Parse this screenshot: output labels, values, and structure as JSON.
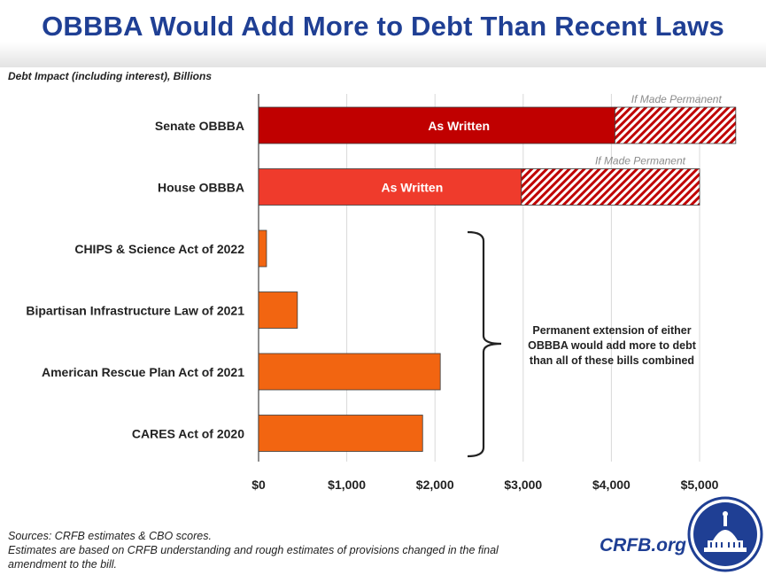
{
  "header": {
    "title": "OBBBA Would Add More to Debt Than Recent Laws"
  },
  "subtitle": "Debt Impact (including interest), Billions",
  "chart_data": {
    "type": "bar",
    "orientation": "horizontal",
    "title": "OBBBA Would Add More to Debt Than Recent Laws",
    "xlabel": "Debt Impact (including interest), Billions",
    "xlim": [
      0,
      5400
    ],
    "x_ticks": [
      0,
      1000,
      2000,
      3000,
      4000,
      5000
    ],
    "x_tick_labels": [
      "$0",
      "$1,000",
      "$2,000",
      "$3,000",
      "$4,000",
      "$5,000"
    ],
    "grid": "vertical",
    "categories": [
      "Senate OBBBA",
      "House OBBBA",
      "CHIPS & Science Act of 2022",
      "Bipartisan Infrastructure Law of 2021",
      "American Rescue Plan Act of 2021",
      "CARES Act of 2020"
    ],
    "series": [
      {
        "name": "As Written",
        "values": [
          4040,
          2980,
          90,
          440,
          2060,
          1860
        ],
        "colors": [
          "#c00000",
          "#ef3b2c",
          "#f26511",
          "#f26511",
          "#f26511",
          "#f26511"
        ]
      },
      {
        "name": "If Made Permanent",
        "values": [
          1370,
          2020,
          0,
          0,
          0,
          0
        ],
        "pattern": "hatched",
        "color": "#c00000"
      }
    ],
    "bar_labels": [
      "As Written",
      "As Written",
      "",
      "",
      "",
      ""
    ],
    "permanent_labels": [
      "If Made Permanent",
      "If Made Permanent",
      "",
      "",
      "",
      ""
    ],
    "annotation": "Permanent extension of either OBBBA would add more to debt than all of these bills combined"
  },
  "annotation_lines": [
    "Permanent extension of either",
    "OBBBA would add more to debt",
    "than all of these bills combined"
  ],
  "footer": {
    "sources": "Sources: CRFB estimates & CBO scores.",
    "note_line1": "Estimates are based on CRFB understanding and rough estimates of provisions changed in the final",
    "note_line2": "amendment to the bill."
  },
  "brand": "CRFB.org",
  "colors": {
    "title": "#1f3f94",
    "senate": "#c00000",
    "house": "#ef3b2c",
    "others": "#f26511",
    "grid": "#d9d9d9"
  }
}
